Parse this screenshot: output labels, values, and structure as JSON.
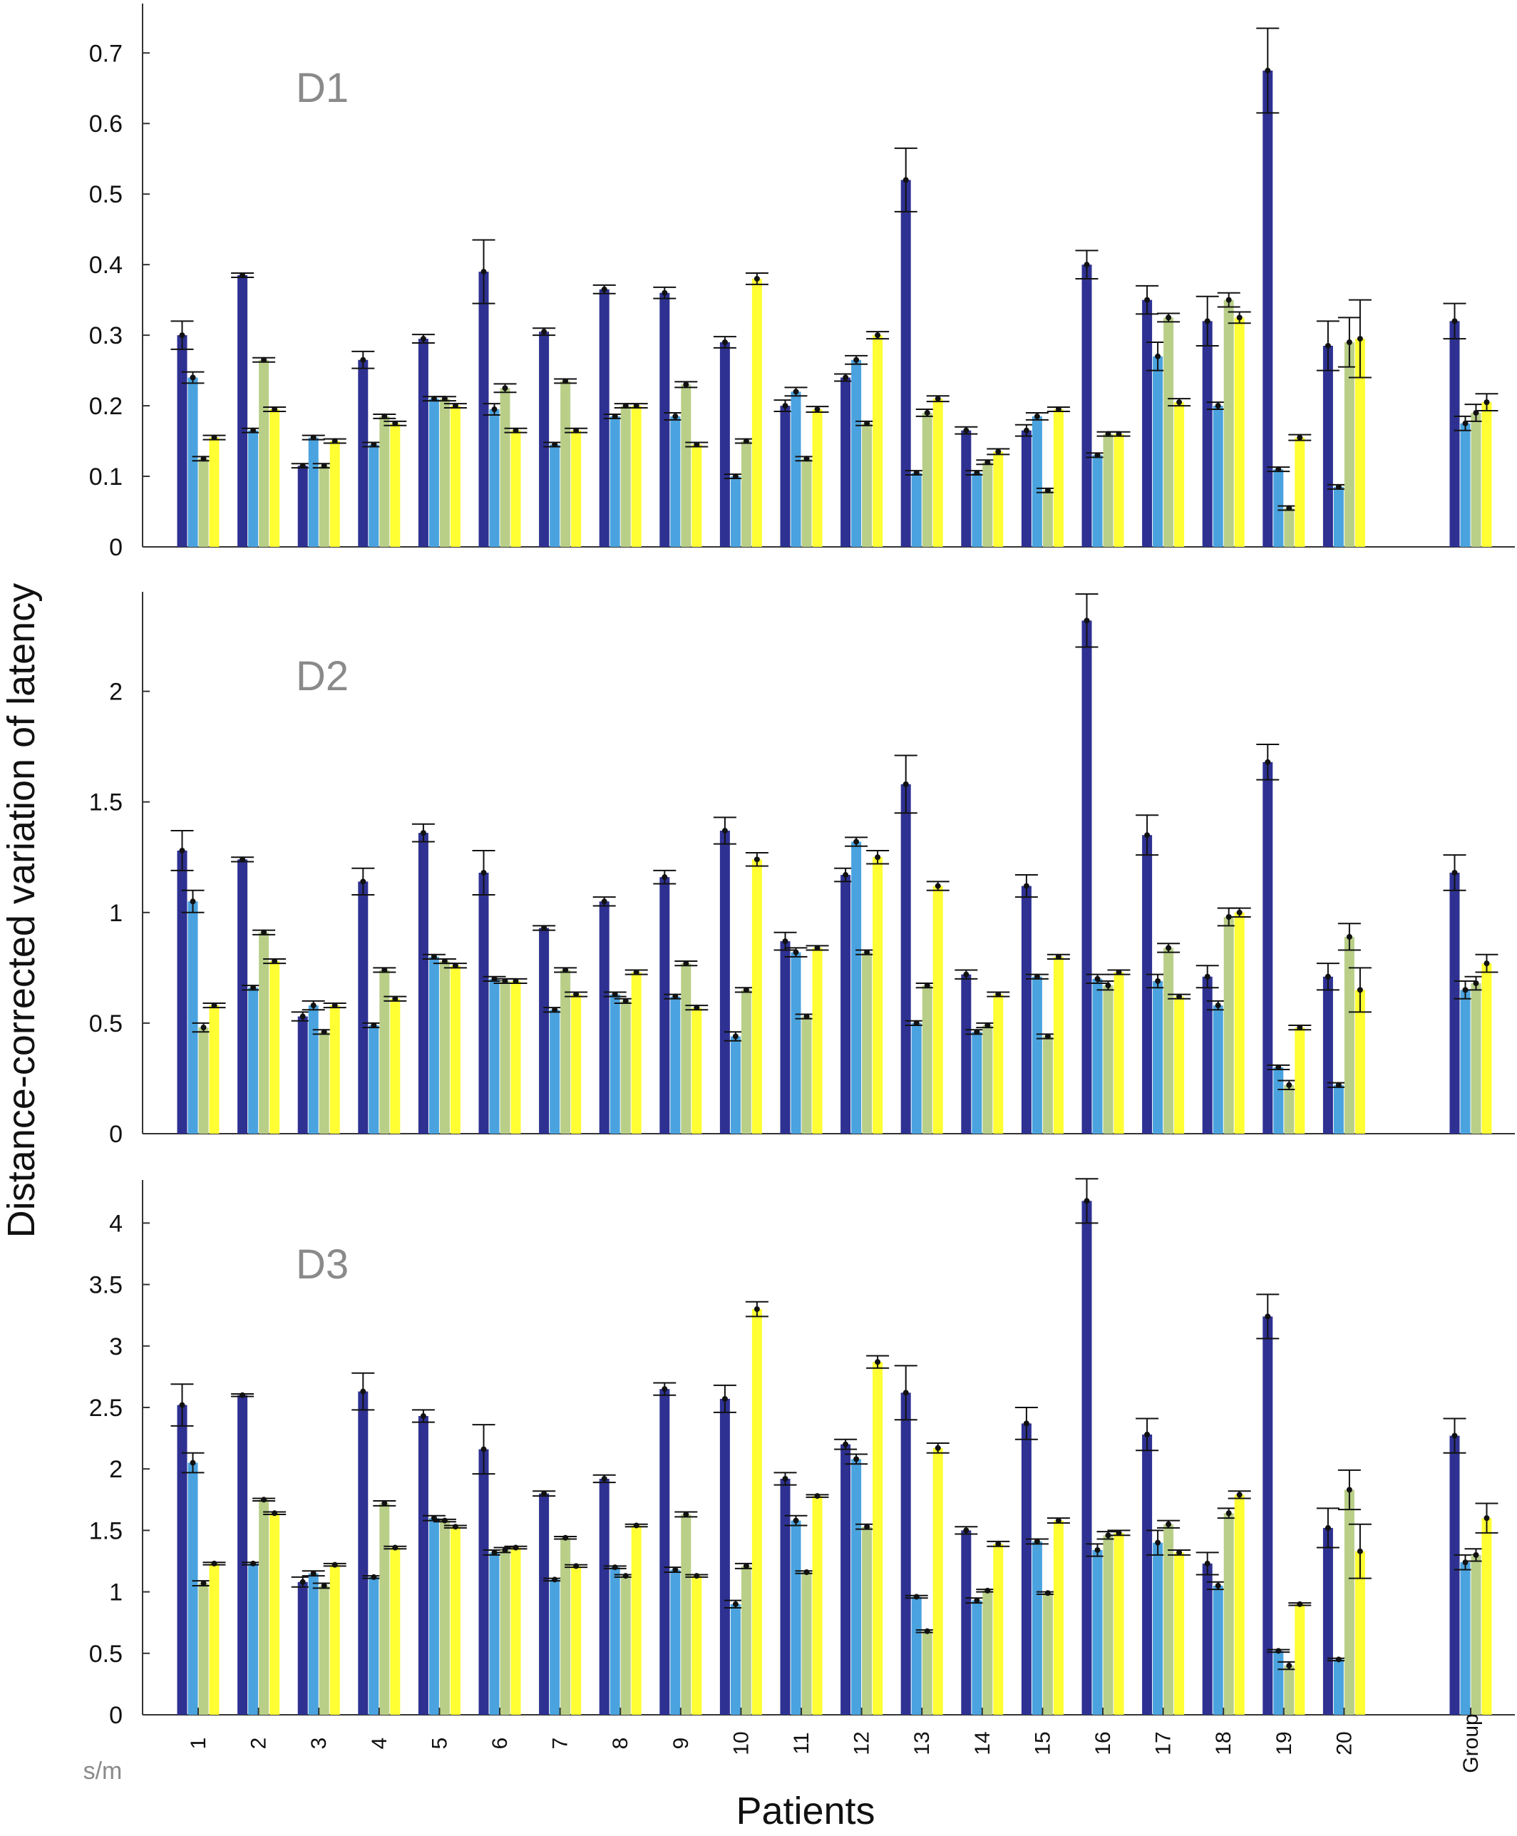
{
  "chart_data": {
    "type": "bar",
    "ylabel": "Distance-corrected variation of latency",
    "xlabel": "Patients",
    "unit_label": "s/m",
    "categories": [
      "1",
      "2",
      "3",
      "4",
      "5",
      "6",
      "7",
      "8",
      "9",
      "10",
      "11",
      "12",
      "13",
      "14",
      "15",
      "16",
      "17",
      "18",
      "19",
      "20",
      "Group"
    ],
    "series_colors": [
      "#2e3192",
      "#4aa3df",
      "#b9cf88",
      "#ffff33"
    ],
    "panels": [
      {
        "label": "D1",
        "ylim": [
          0,
          0.77
        ],
        "yticks": [
          0,
          0.1,
          0.2,
          0.3,
          0.4,
          0.5,
          0.6,
          0.7
        ],
        "ytick_labels": [
          "0",
          "0.1",
          "0.2",
          "0.3",
          "0.4",
          "0.5",
          "0.6",
          "0.7"
        ],
        "series": [
          {
            "values": [
              0.3,
              0.385,
              0.115,
              0.265,
              0.295,
              0.39,
              0.305,
              0.365,
              0.36,
              0.29,
              0.2,
              0.24,
              0.52,
              0.165,
              0.165,
              0.4,
              0.35,
              0.32,
              0.675,
              0.285,
              0.32
            ],
            "errors": [
              0.02,
              0.003,
              0.003,
              0.012,
              0.006,
              0.045,
              0.005,
              0.006,
              0.008,
              0.008,
              0.008,
              0.005,
              0.045,
              0.005,
              0.008,
              0.02,
              0.02,
              0.035,
              0.06,
              0.035,
              0.025
            ]
          },
          {
            "values": [
              0.24,
              0.165,
              0.155,
              0.145,
              0.21,
              0.195,
              0.145,
              0.185,
              0.185,
              0.1,
              0.22,
              0.265,
              0.105,
              0.105,
              0.185,
              0.13,
              0.27,
              0.2,
              0.11,
              0.085,
              0.175
            ],
            "errors": [
              0.008,
              0.003,
              0.003,
              0.003,
              0.003,
              0.008,
              0.003,
              0.003,
              0.005,
              0.003,
              0.006,
              0.006,
              0.003,
              0.003,
              0.005,
              0.003,
              0.02,
              0.005,
              0.003,
              0.003,
              0.01
            ]
          },
          {
            "values": [
              0.125,
              0.265,
              0.115,
              0.185,
              0.21,
              0.225,
              0.235,
              0.2,
              0.23,
              0.15,
              0.125,
              0.175,
              0.19,
              0.12,
              0.08,
              0.16,
              0.325,
              0.35,
              0.055,
              0.29,
              0.19
            ],
            "errors": [
              0.003,
              0.003,
              0.003,
              0.003,
              0.003,
              0.006,
              0.003,
              0.003,
              0.004,
              0.003,
              0.003,
              0.003,
              0.005,
              0.003,
              0.003,
              0.003,
              0.006,
              0.01,
              0.003,
              0.035,
              0.012
            ]
          },
          {
            "values": [
              0.155,
              0.195,
              0.15,
              0.175,
              0.2,
              0.165,
              0.165,
              0.2,
              0.145,
              0.38,
              0.195,
              0.3,
              0.21,
              0.135,
              0.195,
              0.16,
              0.205,
              0.325,
              0.155,
              0.295,
              0.205
            ],
            "errors": [
              0.003,
              0.003,
              0.003,
              0.003,
              0.003,
              0.003,
              0.003,
              0.003,
              0.003,
              0.008,
              0.004,
              0.005,
              0.004,
              0.004,
              0.003,
              0.003,
              0.005,
              0.008,
              0.004,
              0.055,
              0.012
            ]
          }
        ]
      },
      {
        "label": "D2",
        "ylim": [
          0,
          2.45
        ],
        "yticks": [
          0,
          0.5,
          1,
          1.5,
          2
        ],
        "ytick_labels": [
          "0",
          "0.5",
          "1",
          "1.5",
          "2"
        ],
        "series": [
          {
            "values": [
              1.28,
              1.24,
              0.53,
              1.14,
              1.36,
              1.18,
              0.93,
              1.05,
              1.16,
              1.37,
              0.87,
              1.17,
              1.58,
              0.72,
              1.12,
              2.32,
              1.35,
              0.71,
              1.68,
              0.71,
              1.18
            ],
            "errors": [
              0.09,
              0.01,
              0.02,
              0.06,
              0.04,
              0.1,
              0.01,
              0.02,
              0.03,
              0.06,
              0.04,
              0.03,
              0.13,
              0.02,
              0.05,
              0.12,
              0.09,
              0.05,
              0.08,
              0.06,
              0.08
            ]
          },
          {
            "values": [
              1.05,
              0.66,
              0.58,
              0.49,
              0.8,
              0.7,
              0.56,
              0.63,
              0.62,
              0.44,
              0.82,
              1.32,
              0.5,
              0.46,
              0.71,
              0.7,
              0.69,
              0.58,
              0.3,
              0.22,
              0.65
            ],
            "errors": [
              0.05,
              0.01,
              0.02,
              0.01,
              0.01,
              0.01,
              0.01,
              0.01,
              0.01,
              0.02,
              0.02,
              0.02,
              0.01,
              0.01,
              0.01,
              0.02,
              0.03,
              0.02,
              0.01,
              0.01,
              0.04
            ]
          },
          {
            "values": [
              0.48,
              0.91,
              0.46,
              0.74,
              0.78,
              0.69,
              0.74,
              0.6,
              0.77,
              0.65,
              0.53,
              0.82,
              0.67,
              0.49,
              0.44,
              0.67,
              0.84,
              0.98,
              0.22,
              0.89,
              0.68
            ],
            "errors": [
              0.02,
              0.01,
              0.01,
              0.01,
              0.01,
              0.01,
              0.01,
              0.01,
              0.01,
              0.01,
              0.01,
              0.01,
              0.01,
              0.01,
              0.01,
              0.02,
              0.02,
              0.04,
              0.02,
              0.06,
              0.03
            ]
          },
          {
            "values": [
              0.58,
              0.78,
              0.58,
              0.61,
              0.76,
              0.69,
              0.63,
              0.73,
              0.57,
              1.24,
              0.84,
              1.25,
              1.12,
              0.63,
              0.8,
              0.73,
              0.62,
              1.0,
              0.48,
              0.65,
              0.77
            ],
            "errors": [
              0.01,
              0.01,
              0.01,
              0.01,
              0.01,
              0.01,
              0.01,
              0.01,
              0.01,
              0.03,
              0.01,
              0.03,
              0.02,
              0.01,
              0.01,
              0.01,
              0.01,
              0.02,
              0.01,
              0.1,
              0.04
            ]
          }
        ]
      },
      {
        "label": "D3",
        "ylim": [
          0,
          4.35
        ],
        "yticks": [
          0,
          0.5,
          1,
          1.5,
          2,
          2.5,
          3,
          3.5,
          4
        ],
        "ytick_labels": [
          "0",
          "0.5",
          "1",
          "1.5",
          "2",
          "2.5",
          "3",
          "3.5",
          "4"
        ],
        "series": [
          {
            "values": [
              2.52,
              2.6,
              1.08,
              2.63,
              2.43,
              2.16,
              1.8,
              1.92,
              2.65,
              2.57,
              1.92,
              2.2,
              2.62,
              1.5,
              2.37,
              4.18,
              2.28,
              1.23,
              3.24,
              1.52,
              2.27
            ],
            "errors": [
              0.17,
              0.01,
              0.04,
              0.15,
              0.05,
              0.2,
              0.02,
              0.03,
              0.05,
              0.11,
              0.05,
              0.04,
              0.22,
              0.03,
              0.13,
              0.18,
              0.13,
              0.09,
              0.18,
              0.16,
              0.14
            ]
          },
          {
            "values": [
              2.05,
              1.23,
              1.15,
              1.12,
              1.6,
              1.32,
              1.1,
              1.2,
              1.18,
              0.9,
              1.58,
              2.08,
              0.96,
              0.93,
              1.41,
              1.34,
              1.4,
              1.05,
              0.52,
              0.45,
              1.24
            ],
            "errors": [
              0.08,
              0.01,
              0.02,
              0.01,
              0.02,
              0.02,
              0.01,
              0.01,
              0.02,
              0.03,
              0.04,
              0.04,
              0.01,
              0.02,
              0.02,
              0.05,
              0.1,
              0.03,
              0.01,
              0.01,
              0.06
            ]
          },
          {
            "values": [
              1.07,
              1.75,
              1.05,
              1.72,
              1.58,
              1.34,
              1.44,
              1.13,
              1.63,
              1.21,
              1.16,
              1.53,
              0.68,
              1.01,
              0.99,
              1.46,
              1.55,
              1.64,
              0.4,
              1.83,
              1.3
            ],
            "errors": [
              0.02,
              0.01,
              0.02,
              0.02,
              0.01,
              0.02,
              0.01,
              0.01,
              0.02,
              0.02,
              0.01,
              0.02,
              0.01,
              0.01,
              0.01,
              0.03,
              0.03,
              0.04,
              0.03,
              0.16,
              0.05
            ]
          },
          {
            "values": [
              1.23,
              1.64,
              1.22,
              1.36,
              1.53,
              1.36,
              1.21,
              1.54,
              1.13,
              3.3,
              1.78,
              2.87,
              2.17,
              1.39,
              1.58,
              1.48,
              1.32,
              1.79,
              0.9,
              1.33,
              1.6
            ],
            "errors": [
              0.01,
              0.01,
              0.01,
              0.01,
              0.01,
              0.01,
              0.01,
              0.01,
              0.01,
              0.06,
              0.01,
              0.05,
              0.04,
              0.02,
              0.02,
              0.02,
              0.02,
              0.03,
              0.01,
              0.22,
              0.12
            ]
          }
        ]
      }
    ]
  }
}
